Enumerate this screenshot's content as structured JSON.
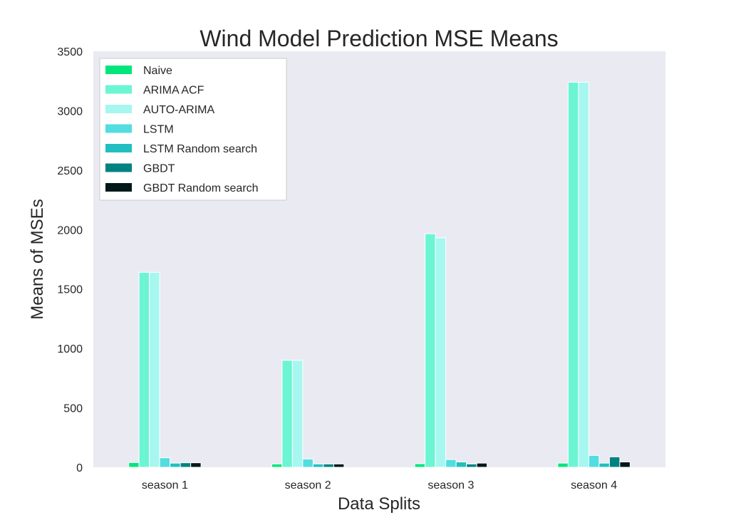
{
  "chart_data": {
    "type": "bar",
    "title": "Wind Model Prediction MSE Means",
    "xlabel": "Data Splits",
    "ylabel": "Means of MSEs",
    "ylim": [
      0,
      3500
    ],
    "yticks": [
      0,
      500,
      1000,
      1500,
      2000,
      2500,
      3000,
      3500
    ],
    "grid": false,
    "legend_position": "top-left",
    "categories": [
      "season 1",
      "season 2",
      "season 3",
      "season 4"
    ],
    "series": [
      {
        "name": "Naive",
        "color": "#00e67a",
        "values": [
          40,
          28,
          30,
          35
        ]
      },
      {
        "name": "ARIMA ACF",
        "color": "#6cf5d2",
        "values": [
          1640,
          900,
          1965,
          3240
        ]
      },
      {
        "name": "AUTO-ARIMA",
        "color": "#a6f7f0",
        "values": [
          1640,
          900,
          1930,
          3240
        ]
      },
      {
        "name": "LSTM",
        "color": "#52dde0",
        "values": [
          80,
          70,
          65,
          100
        ]
      },
      {
        "name": "LSTM Random search",
        "color": "#22bfc0",
        "values": [
          35,
          28,
          45,
          35
        ]
      },
      {
        "name": "GBDT",
        "color": "#008282",
        "values": [
          38,
          28,
          28,
          88
        ]
      },
      {
        "name": "GBDT Random search",
        "color": "#021919",
        "values": [
          38,
          28,
          35,
          45
        ]
      }
    ]
  }
}
